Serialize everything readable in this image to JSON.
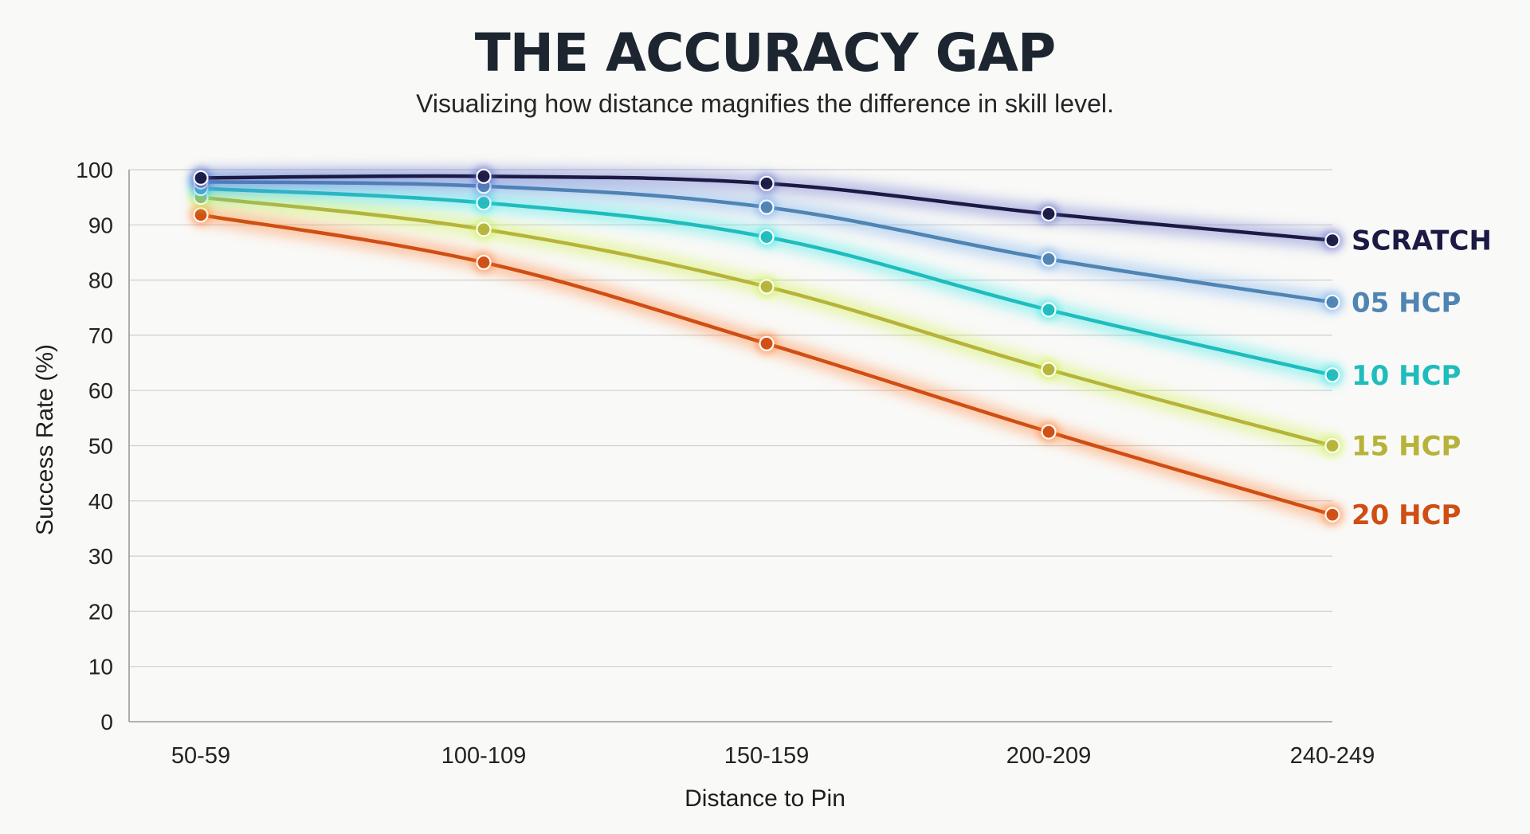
{
  "chart_data": {
    "type": "line",
    "title": "THE ACCURACY GAP",
    "subtitle": "Visualizing how distance magnifies the difference in skill level.",
    "xlabel": "Distance to Pin",
    "ylabel": "Success Rate (%)",
    "categories": [
      "50-59",
      "100-109",
      "150-159",
      "200-209",
      "240-249"
    ],
    "ylim": [
      0,
      100
    ],
    "yticks": [
      0,
      10,
      20,
      30,
      40,
      50,
      60,
      70,
      80,
      90,
      100
    ],
    "grid": true,
    "legend": "end-of-line labels (right)",
    "series": [
      {
        "name": "SCRATCH",
        "color": "#1c1a45",
        "glow": "#5a66c8",
        "values": [
          98.5,
          98.8,
          97.5,
          92,
          87.2
        ]
      },
      {
        "name": "05 HCP",
        "color": "#4f84b3",
        "glow": "#6aa8ec",
        "values": [
          97.8,
          97,
          93.2,
          83.8,
          76
        ]
      },
      {
        "name": "10 HCP",
        "color": "#1fbcbc",
        "glow": "#2fe6e6",
        "values": [
          96.6,
          94,
          87.8,
          74.6,
          62.8
        ]
      },
      {
        "name": "15 HCP",
        "color": "#b7b33a",
        "glow": "#c8ef3a",
        "values": [
          95,
          89.2,
          78.8,
          63.8,
          50
        ]
      },
      {
        "name": "20 HCP",
        "color": "#cf4e13",
        "glow": "#ff7a2a",
        "values": [
          91.8,
          83.2,
          68.5,
          52.5,
          37.5
        ]
      }
    ]
  }
}
